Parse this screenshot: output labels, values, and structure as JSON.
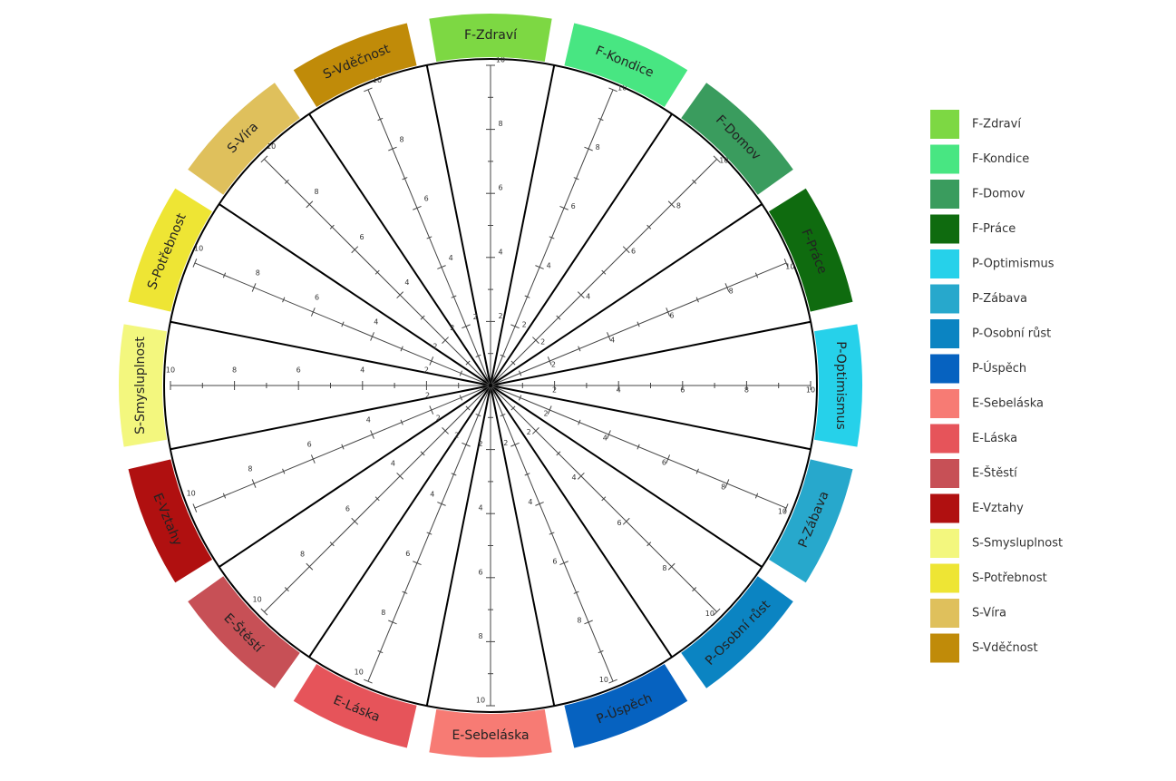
{
  "chart_data": {
    "type": "radar",
    "categories": [
      "F-Zdraví",
      "F-Kondice",
      "F-Domov",
      "F-Práce",
      "P-Optimismus",
      "P-Zábava",
      "P-Osobní růst",
      "P-Úspěch",
      "E-Sebeláska",
      "E-Láska",
      "E-Štěstí",
      "E-Vztahy",
      "S-Smysluplnost",
      "S-Potřebnost",
      "S-Víra",
      "S-Vděčnost"
    ],
    "colors": [
      "#7dd843",
      "#48e682",
      "#3a9c5e",
      "#0f6b0f",
      "#26d1ea",
      "#27a8cc",
      "#0b84c2",
      "#0662c0",
      "#f77b74",
      "#e6545a",
      "#c75056",
      "#b01010",
      "#f3f77e",
      "#eee534",
      "#dfc05c",
      "#c08b09"
    ],
    "rlim": [
      0,
      10
    ],
    "rticks": [
      2,
      4,
      6,
      8,
      10
    ],
    "rminorticks": [
      1,
      3,
      5,
      7,
      9
    ],
    "legend": "right"
  }
}
